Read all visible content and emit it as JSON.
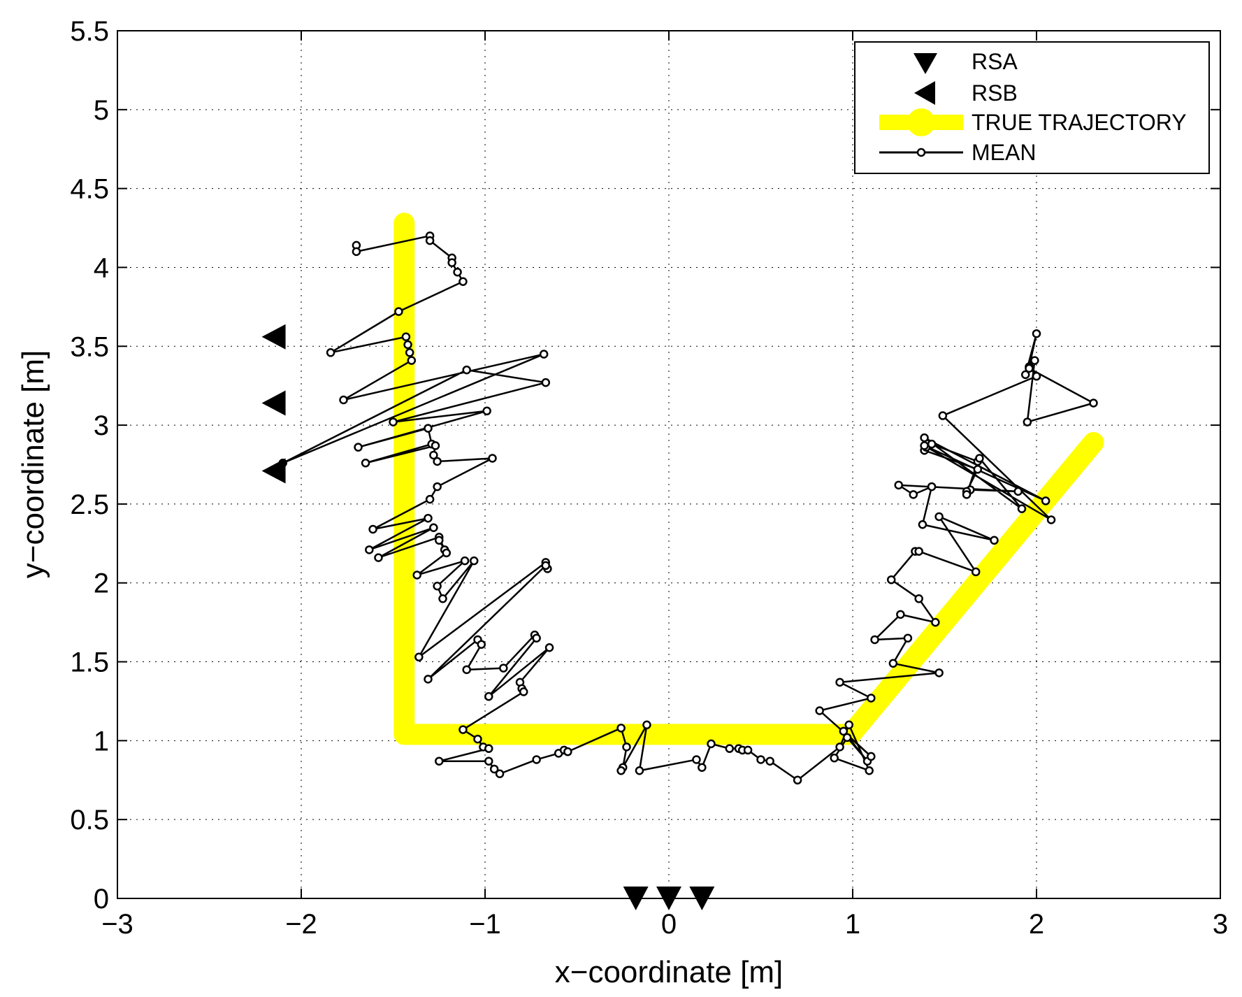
{
  "chart_data": {
    "type": "scatter",
    "title": "",
    "xlabel": "x−coordinate [m]",
    "ylabel": "y−coordinate [m]",
    "xlim": [
      -3,
      3
    ],
    "ylim": [
      0,
      5.5
    ],
    "grid": true,
    "legend_position": "top-right",
    "x_ticks": [
      {
        "value": -3,
        "label": "−3"
      },
      {
        "value": -2,
        "label": "−2"
      },
      {
        "value": -1,
        "label": "−1"
      },
      {
        "value": 0,
        "label": "0"
      },
      {
        "value": 1,
        "label": "1"
      },
      {
        "value": 2,
        "label": "2"
      },
      {
        "value": 3,
        "label": "3"
      }
    ],
    "y_ticks": [
      {
        "value": 0,
        "label": "0"
      },
      {
        "value": 0.5,
        "label": "0.5"
      },
      {
        "value": 1,
        "label": "1"
      },
      {
        "value": 1.5,
        "label": "1.5"
      },
      {
        "value": 2,
        "label": "2"
      },
      {
        "value": 2.5,
        "label": "2.5"
      },
      {
        "value": 3,
        "label": "3"
      },
      {
        "value": 3.5,
        "label": "3.5"
      },
      {
        "value": 4,
        "label": "4"
      },
      {
        "value": 4.5,
        "label": "4.5"
      },
      {
        "value": 5,
        "label": "5"
      },
      {
        "value": 5.5,
        "label": "5.5"
      }
    ],
    "series": [
      {
        "name": "RSA",
        "marker": "triangle-down",
        "color": "#000000",
        "points": [
          [
            -0.18,
            0.0
          ],
          [
            0.0,
            0.0
          ],
          [
            0.18,
            0.0
          ]
        ]
      },
      {
        "name": "RSB",
        "marker": "triangle-left",
        "color": "#000000",
        "points": [
          [
            -2.15,
            3.56
          ],
          [
            -2.15,
            3.14
          ],
          [
            -2.15,
            2.71
          ]
        ]
      },
      {
        "name": "TRUE TRAJECTORY",
        "marker": "line",
        "color": "#ffff00",
        "points": [
          [
            -1.44,
            4.28
          ],
          [
            -1.44,
            1.04
          ],
          [
            0.99,
            1.04
          ],
          [
            2.31,
            2.89
          ]
        ]
      },
      {
        "name": "MEAN",
        "marker": "open-circle-line",
        "color": "#000000",
        "points": [
          [
            -1.7,
            4.14
          ],
          [
            -1.7,
            4.1
          ],
          [
            -1.3,
            4.2
          ],
          [
            -1.3,
            4.17
          ],
          [
            -1.18,
            4.06
          ],
          [
            -1.18,
            4.03
          ],
          [
            -1.15,
            3.97
          ],
          [
            -1.12,
            3.91
          ],
          [
            -1.47,
            3.72
          ],
          [
            -1.84,
            3.46
          ],
          [
            -1.43,
            3.56
          ],
          [
            -1.42,
            3.51
          ],
          [
            -1.41,
            3.46
          ],
          [
            -1.4,
            3.41
          ],
          [
            -1.77,
            3.16
          ],
          [
            -0.68,
            3.45
          ],
          [
            -2.1,
            2.76
          ],
          [
            -1.1,
            3.35
          ],
          [
            -0.67,
            3.27
          ],
          [
            -1.5,
            3.02
          ],
          [
            -0.99,
            3.09
          ],
          [
            -1.69,
            2.86
          ],
          [
            -1.31,
            2.98
          ],
          [
            -1.29,
            2.88
          ],
          [
            -1.65,
            2.76
          ],
          [
            -1.27,
            2.87
          ],
          [
            -1.28,
            2.81
          ],
          [
            -1.26,
            2.77
          ],
          [
            -0.96,
            2.79
          ],
          [
            -1.26,
            2.61
          ],
          [
            -1.3,
            2.53
          ],
          [
            -1.61,
            2.34
          ],
          [
            -1.31,
            2.41
          ],
          [
            -1.63,
            2.21
          ],
          [
            -1.28,
            2.35
          ],
          [
            -1.58,
            2.16
          ],
          [
            -1.25,
            2.29
          ],
          [
            -1.22,
            2.21
          ],
          [
            -1.25,
            2.27
          ],
          [
            -1.21,
            2.19
          ],
          [
            -1.37,
            2.05
          ],
          [
            -1.11,
            2.14
          ],
          [
            -1.26,
            1.98
          ],
          [
            -1.23,
            1.9
          ],
          [
            -1.06,
            2.14
          ],
          [
            -1.36,
            1.53
          ],
          [
            -0.67,
            2.13
          ],
          [
            -0.66,
            2.09
          ],
          [
            -0.67,
            2.11
          ],
          [
            -1.31,
            1.39
          ],
          [
            -1.04,
            1.64
          ],
          [
            -1.02,
            1.61
          ],
          [
            -1.1,
            1.45
          ],
          [
            -0.9,
            1.46
          ],
          [
            -0.73,
            1.67
          ],
          [
            -0.72,
            1.65
          ],
          [
            -0.98,
            1.28
          ],
          [
            -0.65,
            1.59
          ],
          [
            -0.81,
            1.37
          ],
          [
            -0.8,
            1.33
          ],
          [
            -0.79,
            1.31
          ],
          [
            -1.12,
            1.07
          ],
          [
            -1.04,
            1.01
          ],
          [
            -1.01,
            0.96
          ],
          [
            -0.98,
            0.95
          ],
          [
            -1.25,
            0.87
          ],
          [
            -0.98,
            0.87
          ],
          [
            -0.95,
            0.82
          ],
          [
            -0.92,
            0.79
          ],
          [
            -0.72,
            0.88
          ],
          [
            -0.6,
            0.92
          ],
          [
            -0.57,
            0.94
          ],
          [
            -0.55,
            0.93
          ],
          [
            -0.26,
            1.08
          ],
          [
            -0.23,
            0.96
          ],
          [
            -0.25,
            0.83
          ],
          [
            -0.26,
            0.81
          ],
          [
            -0.12,
            1.1
          ],
          [
            -0.16,
            0.81
          ],
          [
            0.15,
            0.88
          ],
          [
            0.18,
            0.83
          ],
          [
            0.23,
            0.98
          ],
          [
            0.33,
            0.95
          ],
          [
            0.38,
            0.95
          ],
          [
            0.4,
            0.94
          ],
          [
            0.43,
            0.94
          ],
          [
            0.5,
            0.88
          ],
          [
            0.55,
            0.87
          ],
          [
            0.7,
            0.75
          ],
          [
            0.93,
            0.96
          ],
          [
            0.98,
            1.1
          ],
          [
            1.09,
            0.81
          ],
          [
            0.9,
            0.89
          ],
          [
            0.97,
            1.02
          ],
          [
            1.08,
            0.87
          ],
          [
            0.95,
            1.06
          ],
          [
            1.1,
            0.9
          ],
          [
            0.82,
            1.19
          ],
          [
            1.1,
            1.27
          ],
          [
            0.93,
            1.37
          ],
          [
            1.47,
            1.43
          ],
          [
            1.22,
            1.49
          ],
          [
            1.3,
            1.65
          ],
          [
            1.12,
            1.64
          ],
          [
            1.26,
            1.8
          ],
          [
            1.45,
            1.75
          ],
          [
            1.36,
            1.9
          ],
          [
            1.21,
            2.02
          ],
          [
            1.34,
            2.2
          ],
          [
            1.36,
            2.2
          ],
          [
            1.67,
            2.07
          ],
          [
            1.47,
            2.42
          ],
          [
            1.77,
            2.27
          ],
          [
            1.38,
            2.37
          ],
          [
            1.43,
            2.61
          ],
          [
            1.33,
            2.56
          ],
          [
            1.25,
            2.62
          ],
          [
            1.9,
            2.58
          ],
          [
            1.64,
            2.59
          ],
          [
            1.62,
            2.58
          ],
          [
            1.68,
            2.72
          ],
          [
            1.39,
            2.84
          ],
          [
            1.4,
            2.86
          ],
          [
            1.43,
            2.88
          ],
          [
            1.68,
            2.77
          ],
          [
            1.62,
            2.56
          ],
          [
            1.69,
            2.79
          ],
          [
            1.92,
            2.47
          ],
          [
            1.39,
            2.92
          ],
          [
            2.05,
            2.52
          ],
          [
            1.39,
            2.87
          ],
          [
            2.08,
            2.4
          ],
          [
            1.49,
            3.06
          ],
          [
            2.0,
            3.31
          ],
          [
            1.96,
            3.37
          ],
          [
            2.0,
            3.58
          ],
          [
            1.94,
            3.32
          ],
          [
            1.96,
            3.36
          ],
          [
            2.31,
            3.14
          ],
          [
            1.95,
            3.02
          ],
          [
            1.99,
            3.41
          ]
        ]
      }
    ]
  },
  "legend": {
    "entries": [
      {
        "label": "RSA"
      },
      {
        "label": "RSB"
      },
      {
        "label": "TRUE TRAJECTORY"
      },
      {
        "label": "MEAN"
      }
    ]
  }
}
